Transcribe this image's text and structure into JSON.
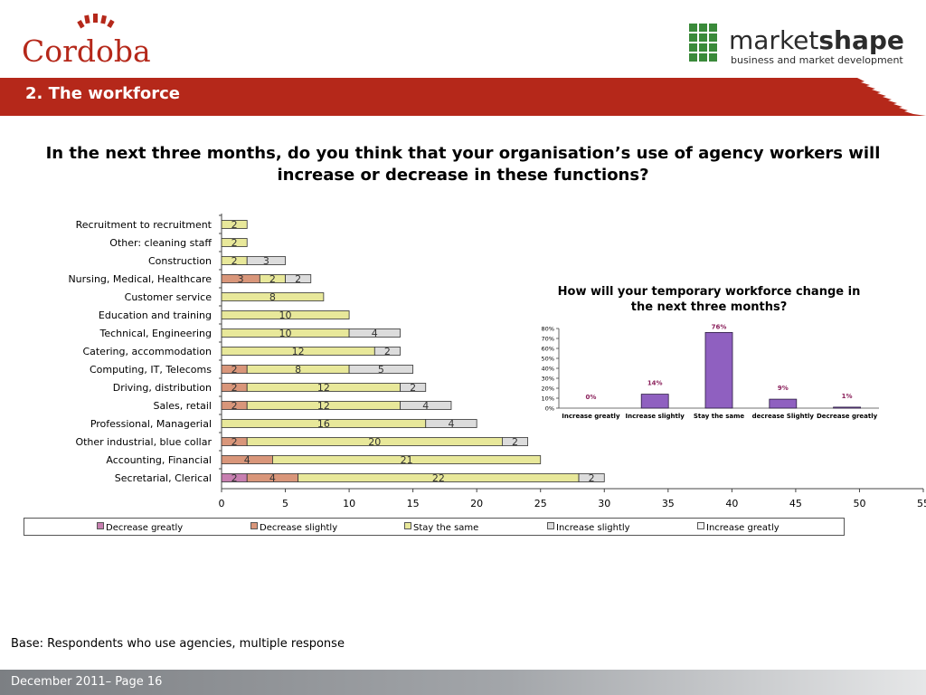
{
  "header": {
    "left_logo_text": "Cordoba",
    "right_logo_text_a": "market",
    "right_logo_text_b": "shape",
    "right_logo_tagline": "business and market development",
    "section_title": "2.  The workforce"
  },
  "question": "In the next three months, do you think that your organisation’s use of agency workers will increase or decrease in these functions?",
  "colors": {
    "brand_red": "#b5281a",
    "decrease_greatly": "#c77fb0",
    "decrease_slightly": "#d9967a",
    "stay_the_same": "#e8e89a",
    "increase_slightly": "#dcdcdc",
    "increase_greatly": "#f4f4f4",
    "mini_bar": "#8f60c0",
    "mini_label": "#8a1f5a"
  },
  "chart_data": [
    {
      "type": "bar",
      "orientation": "horizontal",
      "stacked": true,
      "categories": [
        "Recruitment to recruitment",
        "Other: cleaning staff",
        "Construction",
        "Nursing, Medical, Healthcare",
        "Customer service",
        "Education and training",
        "Technical, Engineering",
        "Catering, accommodation",
        "Computing, IT, Telecoms",
        "Driving, distribution",
        "Sales, retail",
        "Professional, Managerial",
        "Other industrial, blue collar",
        "Accounting, Financial",
        "Secretarial, Clerical"
      ],
      "series": [
        {
          "name": "Decrease greatly",
          "values": [
            0,
            0,
            0,
            0,
            0,
            0,
            0,
            0,
            0,
            0,
            0,
            0,
            0,
            0,
            2
          ]
        },
        {
          "name": "Decrease slightly",
          "values": [
            0,
            0,
            0,
            3,
            0,
            0,
            0,
            0,
            2,
            2,
            2,
            0,
            2,
            4,
            4
          ]
        },
        {
          "name": "Stay the same",
          "values": [
            2,
            2,
            2,
            2,
            8,
            10,
            10,
            12,
            8,
            12,
            12,
            16,
            20,
            21,
            22
          ]
        },
        {
          "name": "Increase slightly",
          "values": [
            0,
            0,
            3,
            2,
            0,
            0,
            4,
            2,
            5,
            2,
            4,
            4,
            2,
            0,
            2
          ]
        },
        {
          "name": "Increase greatly",
          "values": [
            0,
            0,
            0,
            0,
            0,
            0,
            0,
            0,
            0,
            0,
            0,
            0,
            0,
            0,
            0
          ]
        }
      ],
      "xlim": [
        0,
        55
      ],
      "xticks": [
        "0",
        "5",
        "10",
        "15",
        "20",
        "25",
        "30",
        "35",
        "40",
        "45",
        "50",
        "55"
      ],
      "legend": "bottom"
    },
    {
      "type": "bar",
      "title": "How will your temporary workforce change in the next three months?",
      "categories": [
        "Increase greatly",
        "Increase slightly",
        "Stay the same",
        "decrease Slightly",
        "Decrease greatly"
      ],
      "values": [
        0,
        14,
        76,
        9,
        1
      ],
      "value_labels": [
        "0%",
        "14%",
        "76%",
        "9%",
        "1%"
      ],
      "ylim": [
        0,
        80
      ],
      "yticks": [
        "0%",
        "10%",
        "20%",
        "30%",
        "40%",
        "50%",
        "60%",
        "70%",
        "80%"
      ]
    }
  ],
  "base_note": "Base: Respondents who use agencies, multiple response",
  "footer": "December 2011– Page 16"
}
